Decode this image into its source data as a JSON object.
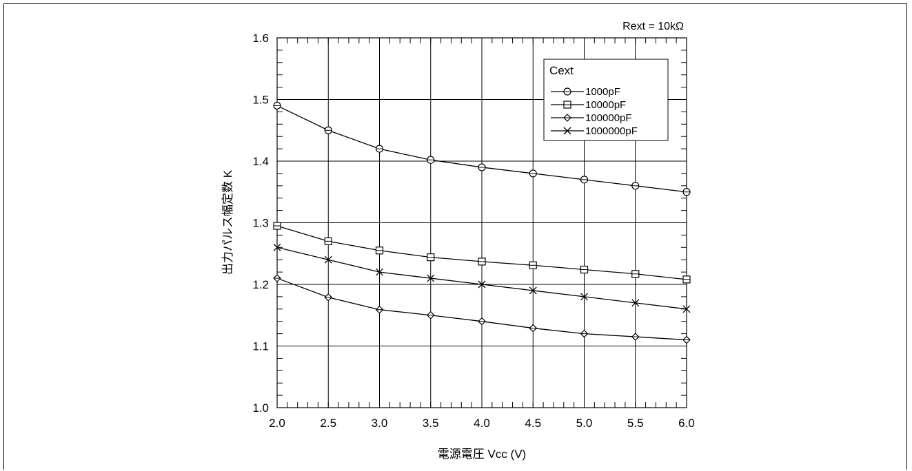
{
  "chart_data": {
    "type": "line",
    "title": "",
    "annotation": "Rext = 10kΩ",
    "xlabel": "電源電圧  Vcc (V)",
    "ylabel": "出力パルス幅定数    K",
    "xlim": [
      2.0,
      6.0
    ],
    "ylim": [
      1.0,
      1.6
    ],
    "x_ticks": [
      "2.0",
      "2.5",
      "3.0",
      "3.5",
      "4.0",
      "4.5",
      "5.0",
      "5.5",
      "6.0"
    ],
    "y_ticks": [
      "1.0",
      "1.1",
      "1.2",
      "1.3",
      "1.4",
      "1.5",
      "1.6"
    ],
    "grid": true,
    "legend_title": "Cext",
    "legend_position": "top-right",
    "x": [
      2.0,
      2.5,
      3.0,
      3.5,
      4.0,
      4.5,
      5.0,
      5.5,
      6.0
    ],
    "series": [
      {
        "name": "1000pF",
        "marker": "circle",
        "values": [
          1.49,
          1.45,
          1.42,
          1.402,
          1.39,
          1.38,
          1.37,
          1.36,
          1.35
        ]
      },
      {
        "name": "10000pF",
        "marker": "square",
        "values": [
          1.295,
          1.27,
          1.255,
          1.244,
          1.237,
          1.231,
          1.224,
          1.217,
          1.208
        ]
      },
      {
        "name": "100000pF",
        "marker": "diamond",
        "values": [
          1.21,
          1.179,
          1.159,
          1.15,
          1.14,
          1.129,
          1.12,
          1.115,
          1.11
        ]
      },
      {
        "name": "1000000pF",
        "marker": "x",
        "values": [
          1.26,
          1.24,
          1.22,
          1.21,
          1.2,
          1.19,
          1.18,
          1.17,
          1.16
        ]
      }
    ]
  }
}
